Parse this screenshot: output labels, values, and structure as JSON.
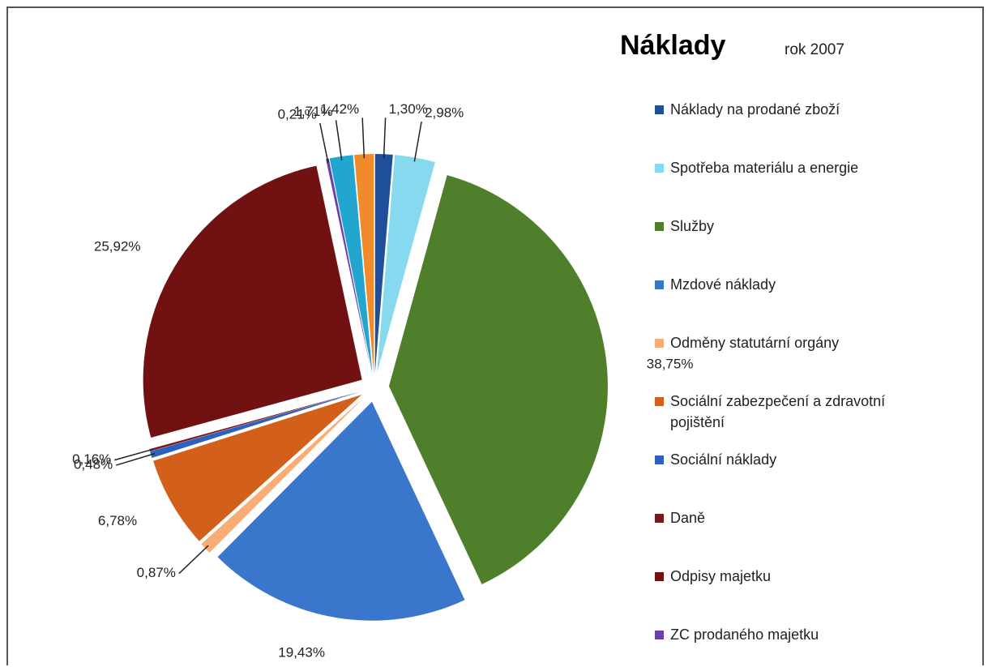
{
  "chart_data": {
    "type": "pie",
    "title": "Náklady",
    "subtitle": "rok 2007",
    "categories": [
      "Náklady na prodané zboží",
      "Spotřeba materiálu a energie",
      "Služby",
      "Mzdové náklady",
      "Odměny statutární orgány",
      "Sociální zabezpečení a zdravotní pojištění",
      "Sociální náklady",
      "Daně",
      "Odpisy majetku",
      "ZC prodaného majetku",
      null,
      null
    ],
    "values": [
      1.3,
      2.98,
      38.75,
      19.43,
      0.87,
      6.78,
      0.48,
      0.16,
      25.92,
      0.21,
      1.71,
      1.42
    ],
    "value_labels": [
      "1,30%",
      "2,98%",
      "38,75%",
      "19,43%",
      "0,87%",
      "6,78%",
      "0,48%",
      "0,16%",
      "25,92%",
      "0,21%",
      "1,71%",
      "1,42%"
    ],
    "colors": [
      "#1f4e9a",
      "#86d9ee",
      "#4f7f2a",
      "#3a76cc",
      "#f7ad74",
      "#d2601a",
      "#2d60bf",
      "#7d1717",
      "#721111",
      "#6a3fb0",
      "#22a6cf",
      "#f08a2a"
    ]
  }
}
